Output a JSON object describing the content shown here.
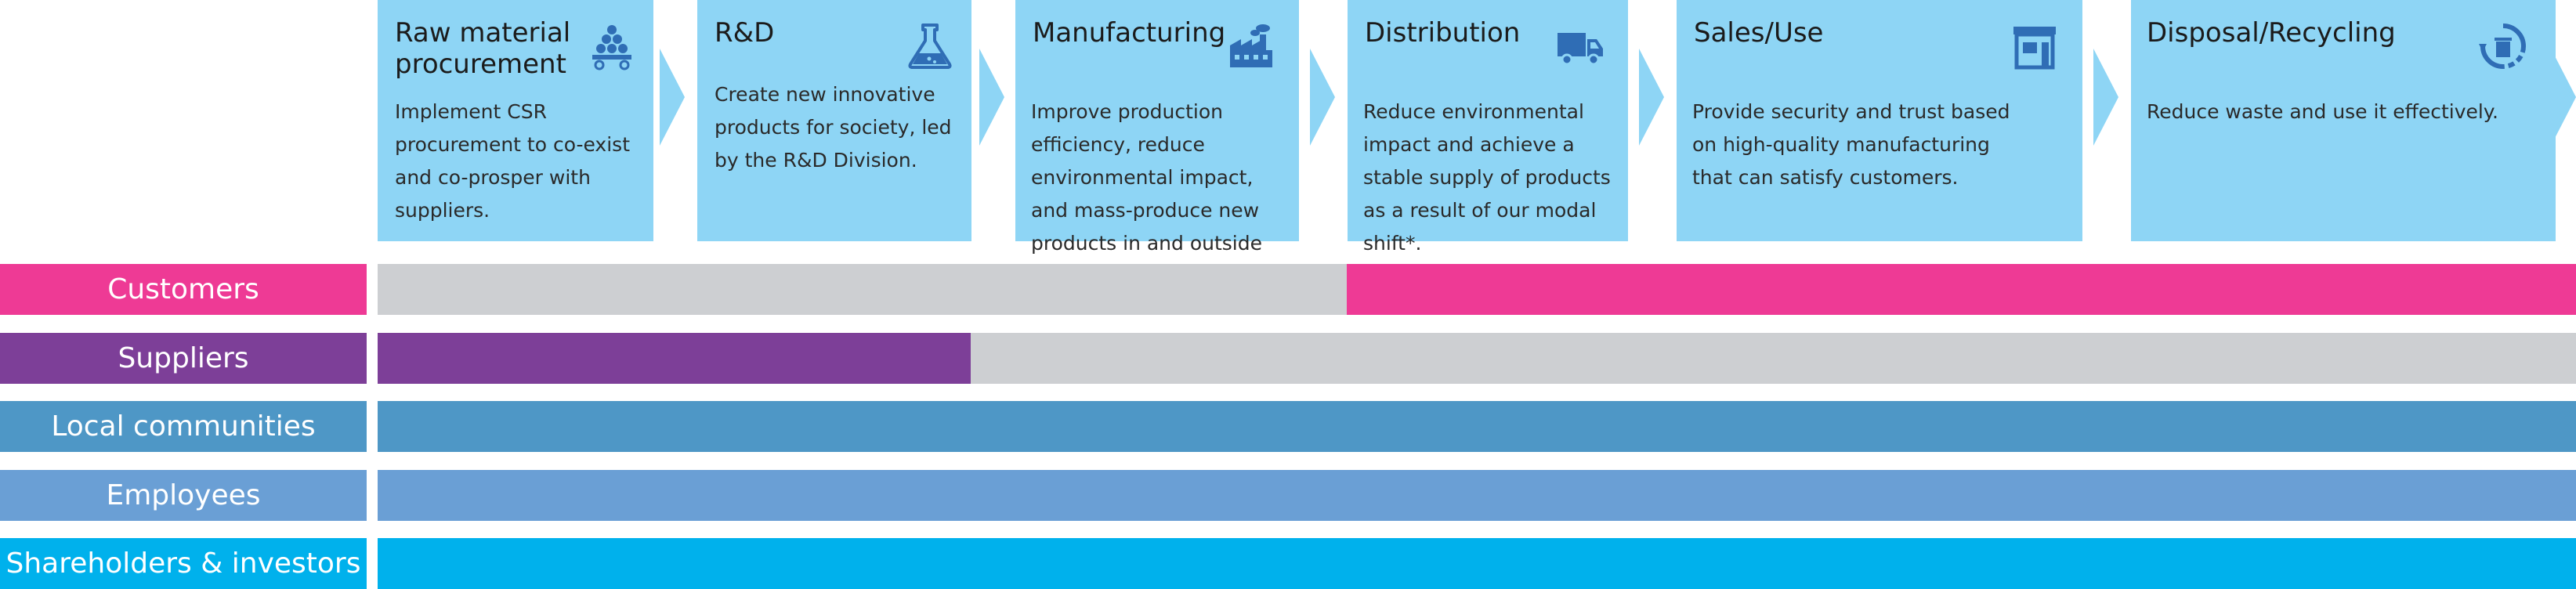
{
  "stages": [
    {
      "title": "Raw material procurement",
      "description": "Implement CSR procurement to co-exist and co-prosper with suppliers.",
      "icon": "procurement-cart-icon"
    },
    {
      "title": "R&D",
      "description": "Create new innovative products for society, led by the R&D Division.",
      "icon": "flask-icon"
    },
    {
      "title": "Manufacturing",
      "description": "Improve production efficiency, reduce environmental impact, and mass-produce new products in and outside Japan.",
      "icon": "factory-icon"
    },
    {
      "title": "Distribution",
      "description": "Reduce environmental impact and achieve a stable supply of products as a result of our modal shift*.",
      "icon": "truck-icon"
    },
    {
      "title": "Sales/Use",
      "description": "Provide security and trust based on high-quality manufacturing that can satisfy customers.",
      "icon": "store-icon"
    },
    {
      "title": "Disposal/Recycling",
      "description": "Reduce waste and use it effectively.",
      "icon": "recycle-bin-icon"
    }
  ],
  "stakeholders": [
    {
      "name": "Customers",
      "color": "#ee3a95",
      "active_from_stage": 4,
      "active_to_stage": 6
    },
    {
      "name": "Suppliers",
      "color": "#7d3f98",
      "active_from_stage": 1,
      "active_to_stage": 2
    },
    {
      "name": "Local communities",
      "color": "#4e97c6",
      "active_from_stage": 1,
      "active_to_stage": 6
    },
    {
      "name": "Employees",
      "color": "#6a9fd5",
      "active_from_stage": 1,
      "active_to_stage": 6
    },
    {
      "name": "Shareholders & investors",
      "color": "#00b1ec",
      "active_from_stage": 1,
      "active_to_stage": 6
    }
  ],
  "colors": {
    "stage_box": "#8ed5f5",
    "arrow": "#8ed5f5",
    "inactive_bar": "#cdcfd2",
    "icon": "#2f6db5"
  }
}
